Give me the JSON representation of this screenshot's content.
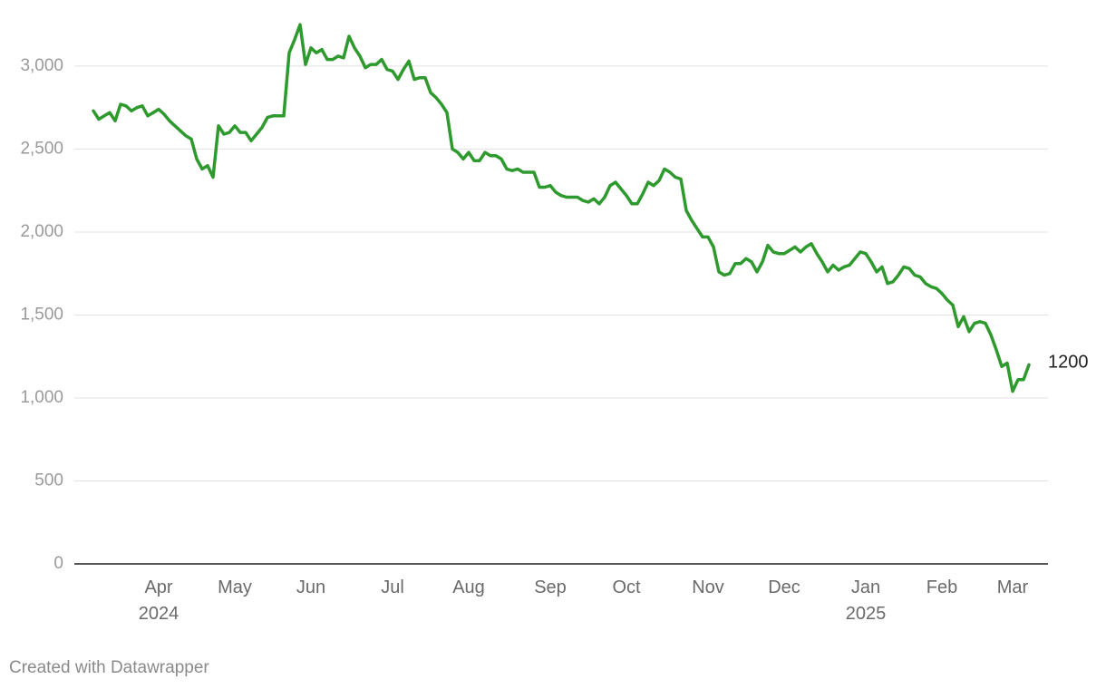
{
  "chart_data": {
    "type": "line",
    "categories": [
      null,
      null,
      null,
      null,
      null,
      null,
      null,
      null,
      null,
      null,
      null,
      null,
      "Apr 2024",
      null,
      null,
      null,
      null,
      null,
      null,
      null,
      null,
      null,
      null,
      null,
      null,
      null,
      "May",
      null,
      null,
      null,
      null,
      null,
      null,
      null,
      null,
      null,
      null,
      null,
      null,
      null,
      "Jun",
      null,
      null,
      null,
      null,
      null,
      null,
      null,
      null,
      null,
      null,
      null,
      null,
      null,
      null,
      "Jul",
      null,
      null,
      null,
      null,
      null,
      null,
      null,
      null,
      null,
      null,
      null,
      null,
      null,
      "Aug",
      null,
      null,
      null,
      null,
      null,
      null,
      null,
      null,
      null,
      null,
      null,
      null,
      null,
      null,
      "Sep",
      null,
      null,
      null,
      null,
      null,
      null,
      null,
      null,
      null,
      null,
      null,
      null,
      null,
      "Oct",
      null,
      null,
      null,
      null,
      null,
      null,
      null,
      null,
      null,
      null,
      null,
      null,
      null,
      null,
      "Nov",
      null,
      null,
      null,
      null,
      null,
      null,
      null,
      null,
      null,
      null,
      null,
      null,
      null,
      "Dec",
      null,
      null,
      null,
      null,
      null,
      null,
      null,
      null,
      null,
      null,
      null,
      null,
      null,
      null,
      "Jan 2025",
      null,
      null,
      null,
      null,
      null,
      null,
      null,
      null,
      null,
      null,
      null,
      null,
      null,
      "Feb",
      null,
      null,
      null,
      null,
      null,
      null,
      null,
      null,
      null,
      null,
      null,
      null,
      "Mar",
      null,
      null,
      null
    ],
    "values": [
      2730,
      2680,
      2700,
      2720,
      2670,
      2770,
      2760,
      2730,
      2750,
      2760,
      2700,
      2720,
      2740,
      2710,
      2670,
      2640,
      2610,
      2580,
      2560,
      2440,
      2380,
      2400,
      2330,
      2640,
      2590,
      2600,
      2640,
      2600,
      2600,
      2550,
      2590,
      2630,
      2690,
      2700,
      2700,
      2700,
      3080,
      3160,
      3250,
      3010,
      3110,
      3080,
      3100,
      3040,
      3040,
      3060,
      3050,
      3180,
      3110,
      3060,
      2990,
      3010,
      3010,
      3040,
      2980,
      2970,
      2920,
      2980,
      3030,
      2920,
      2930,
      2930,
      2840,
      2810,
      2770,
      2720,
      2500,
      2480,
      2440,
      2480,
      2430,
      2430,
      2480,
      2460,
      2460,
      2440,
      2380,
      2370,
      2380,
      2360,
      2360,
      2360,
      2270,
      2270,
      2280,
      2240,
      2220,
      2210,
      2210,
      2210,
      2190,
      2180,
      2200,
      2170,
      2210,
      2280,
      2300,
      2260,
      2220,
      2170,
      2170,
      2230,
      2300,
      2280,
      2310,
      2380,
      2360,
      2330,
      2320,
      2130,
      2070,
      2020,
      1970,
      1970,
      1910,
      1760,
      1740,
      1750,
      1810,
      1810,
      1840,
      1820,
      1760,
      1820,
      1920,
      1880,
      1870,
      1870,
      1890,
      1910,
      1880,
      1910,
      1930,
      1870,
      1820,
      1760,
      1800,
      1770,
      1790,
      1800,
      1840,
      1880,
      1870,
      1820,
      1760,
      1790,
      1690,
      1700,
      1740,
      1790,
      1780,
      1740,
      1730,
      1690,
      1670,
      1660,
      1630,
      1590,
      1560,
      1430,
      1490,
      1400,
      1450,
      1460,
      1450,
      1380,
      1290,
      1190,
      1210,
      1040,
      1110,
      1110,
      1200
    ],
    "color": "#2e9a2e",
    "ylim": [
      0,
      3300
    ],
    "yticks": [
      0,
      500,
      {
        "value": 1000,
        "label": "1,000"
      },
      {
        "value": 1500,
        "label": "1,500"
      },
      {
        "value": 2000,
        "label": "2,000"
      },
      {
        "value": 2500,
        "label": "2,500"
      },
      {
        "value": 3000,
        "label": "3,000"
      }
    ],
    "grid": true,
    "footer": "Created with Datawrapper"
  }
}
